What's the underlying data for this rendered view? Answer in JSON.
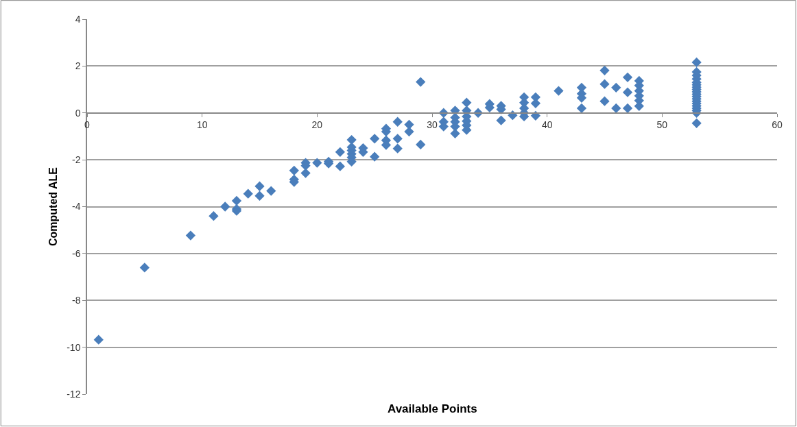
{
  "chart_data": {
    "type": "scatter",
    "xlabel": "Available Points",
    "ylabel": "Computed ALE",
    "xlim": [
      0,
      60
    ],
    "xticks": [
      0,
      10,
      20,
      30,
      40,
      50,
      60
    ],
    "ylim": [
      -12,
      4
    ],
    "yticks": [
      -12,
      -10,
      -8,
      -6,
      -4,
      -2,
      0,
      2,
      4
    ],
    "grid": "y",
    "marker": "diamond",
    "series": [
      {
        "color": "#4a7ebb",
        "x": [
          1,
          5,
          9,
          11,
          12,
          13,
          13,
          13,
          14,
          15,
          15,
          16,
          18,
          18,
          18,
          19,
          19,
          19,
          20,
          21,
          21,
          22,
          22,
          23,
          23,
          23,
          23,
          23,
          23,
          24,
          24,
          25,
          25,
          26,
          26,
          26,
          26,
          27,
          27,
          27,
          28,
          28,
          29,
          29,
          31,
          31,
          31,
          32,
          32,
          32,
          32,
          32,
          33,
          33,
          33,
          33,
          33,
          33,
          34,
          35,
          35,
          36,
          36,
          36,
          37,
          38,
          38,
          38,
          38,
          38,
          39,
          39,
          39,
          41,
          43,
          43,
          43,
          43,
          45,
          45,
          45,
          46,
          46,
          47,
          47,
          47,
          48,
          48,
          48,
          48,
          48,
          48,
          53,
          53,
          53,
          53,
          53,
          53,
          53,
          53,
          53,
          53,
          53,
          53,
          53,
          53,
          53,
          53,
          53,
          53,
          53
        ],
        "values": [
          -9.68,
          -6.6,
          -5.23,
          -4.4,
          -4.0,
          -3.75,
          -4.1,
          -4.18,
          -3.45,
          -3.13,
          -3.54,
          -3.33,
          -2.46,
          -2.84,
          -2.95,
          -2.13,
          -2.25,
          -2.57,
          -2.13,
          -2.08,
          -2.16,
          -1.67,
          -2.28,
          -1.15,
          -1.46,
          -1.6,
          -1.75,
          -1.9,
          -2.08,
          -1.5,
          -1.67,
          -1.1,
          -1.87,
          -0.67,
          -0.8,
          -1.17,
          -1.37,
          -0.38,
          -1.1,
          -1.52,
          -0.5,
          -0.8,
          1.32,
          -1.35,
          0.0,
          -0.38,
          -0.58,
          0.1,
          -0.2,
          -0.38,
          -0.58,
          -0.88,
          0.44,
          0.1,
          -0.15,
          -0.35,
          -0.53,
          -0.73,
          0.0,
          0.38,
          0.23,
          0.3,
          0.15,
          -0.32,
          -0.1,
          0.67,
          0.44,
          0.2,
          0.0,
          -0.15,
          0.67,
          0.41,
          -0.12,
          0.94,
          1.08,
          0.82,
          0.64,
          0.2,
          1.81,
          1.23,
          0.5,
          1.08,
          0.2,
          1.52,
          0.88,
          0.2,
          1.37,
          1.17,
          0.94,
          0.73,
          0.53,
          0.29,
          2.16,
          1.75,
          1.6,
          1.45,
          1.3,
          1.2,
          1.1,
          1.0,
          0.9,
          0.8,
          0.7,
          0.6,
          0.5,
          0.4,
          0.3,
          0.2,
          0.1,
          0.0,
          -0.44
        ]
      }
    ]
  }
}
